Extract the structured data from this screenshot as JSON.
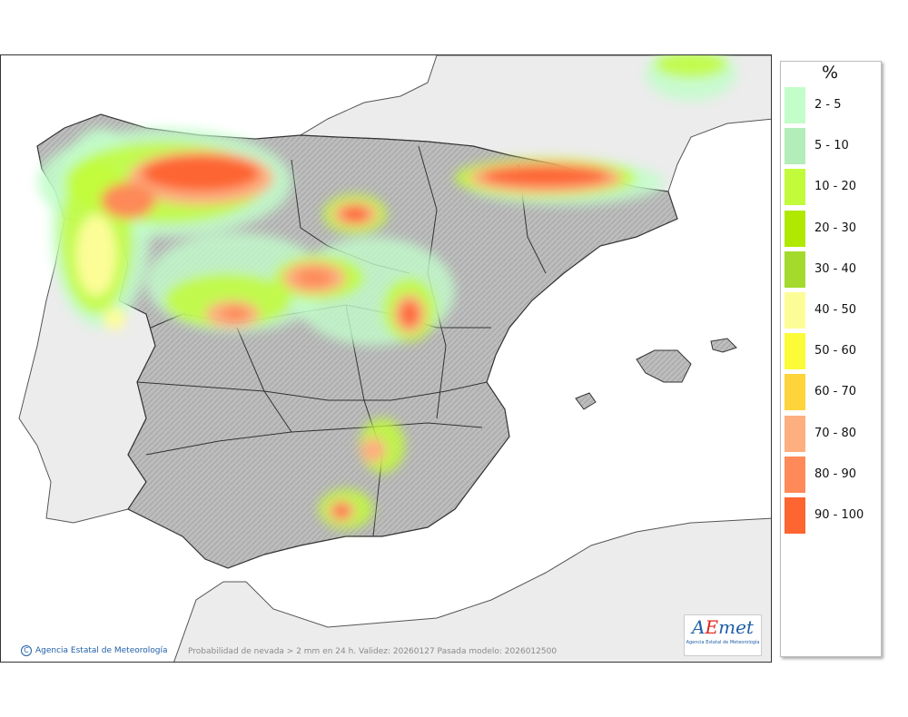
{
  "legend": {
    "title": "%",
    "items": [
      {
        "label": "2 - 5",
        "color": "#c2fdca"
      },
      {
        "label": "5 - 10",
        "color": "#b3edba"
      },
      {
        "label": "10 - 20",
        "color": "#c2fb39"
      },
      {
        "label": "20 - 30",
        "color": "#b0e800"
      },
      {
        "label": "30 - 40",
        "color": "#a3da2c"
      },
      {
        "label": "40 - 50",
        "color": "#fdfd97"
      },
      {
        "label": "50 - 60",
        "color": "#fbfb38"
      },
      {
        "label": "60 - 70",
        "color": "#fdd43a"
      },
      {
        "label": "70 - 80",
        "color": "#fdaf80"
      },
      {
        "label": "80 - 90",
        "color": "#fd8a58"
      },
      {
        "label": "90 - 100",
        "color": "#fd6531"
      }
    ]
  },
  "credit": "Agencia Estatal de Meteorología",
  "caption": "Probabilidad de nevada > 2 mm en 24 h. Validez: 20260127 Pasada modelo: 2026012500",
  "logo": {
    "mark_a": "A",
    "mark_e": "E",
    "mark_rest": "met",
    "subtitle": "Agencia Estatal de Meteorología"
  },
  "colors": {
    "sea": "#ffffff",
    "land_foreign": "#ececec",
    "land_spain": "#b9b9b9",
    "borders": "#333333"
  }
}
